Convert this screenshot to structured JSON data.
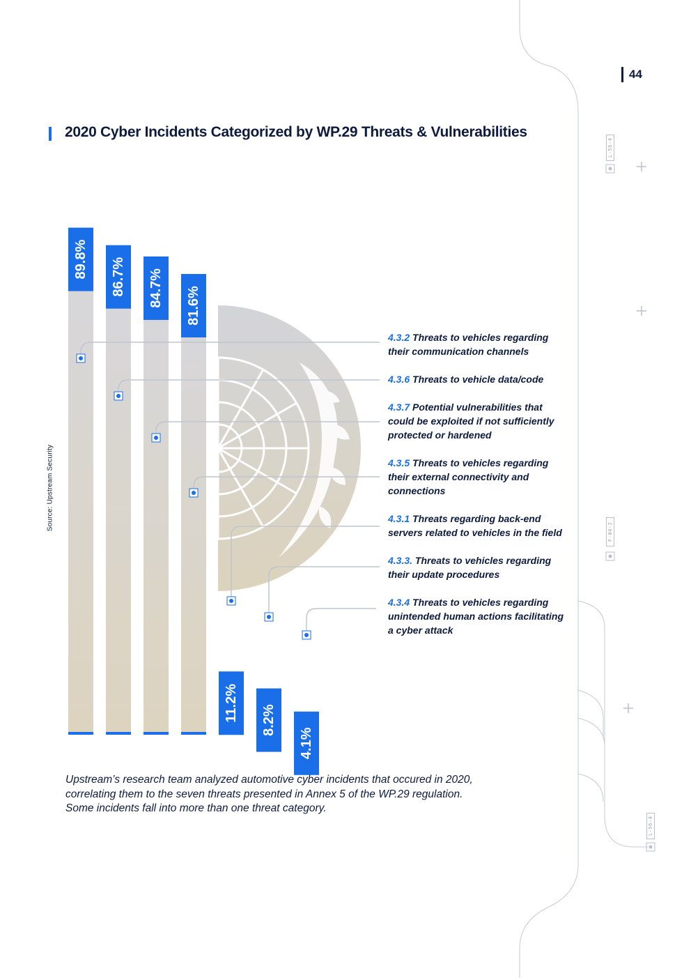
{
  "page_number": "44",
  "title": "2020 Cyber Incidents Categorized by WP.29 Threats & Vulnerabilities",
  "source_label": "Source: Upstream Security",
  "colors": {
    "accent": "#1a6ee8",
    "navy": "#0d1b3e",
    "bar_gray": "#d8d9de",
    "bar_beige": "#ddd4bf"
  },
  "chart_data": {
    "type": "bar",
    "title": "2020 Cyber Incidents Categorized by WP.29 Threats & Vulnerabilities",
    "unit": "%",
    "ylim": [
      0,
      100
    ],
    "categories": [
      "4.3.2",
      "4.3.6",
      "4.3.7",
      "4.3.5",
      "4.3.1",
      "4.3.3.",
      "4.3.4"
    ],
    "values": [
      89.8,
      86.7,
      84.7,
      81.6,
      11.2,
      8.2,
      4.1
    ],
    "value_labels": [
      "89.8%",
      "86.7%",
      "84.7%",
      "81.6%",
      "11.2%",
      "8.2%",
      "4.1%"
    ]
  },
  "threats": [
    {
      "code": "4.3.2",
      "line1": " Threats to vehicles regarding",
      "line2": "their communication channels",
      "line3": ""
    },
    {
      "code": "4.3.6",
      "line1": " Threats to vehicle data/code",
      "line2": "",
      "line3": ""
    },
    {
      "code": "4.3.7",
      "line1": " Potential vulnerabilities that",
      "line2": "could be exploited if not sufficiently",
      "line3": "protected or hardened"
    },
    {
      "code": "4.3.5",
      "line1": " Threats to vehicles regarding",
      "line2": "their external connectivity and",
      "line3": "connections"
    },
    {
      "code": "4.3.1",
      "line1": " Threats regarding back-end",
      "line2": "servers related to vehicles in the field",
      "line3": ""
    },
    {
      "code": "4.3.3.",
      "line1": " Threats to vehicles regarding",
      "line2": "their update procedures",
      "line3": ""
    },
    {
      "code": "4.3.4",
      "line1": " Threats to vehicles regarding",
      "line2": "unintended human actions facilitating",
      "line3": "a cyber attack"
    }
  ],
  "caption": {
    "line1": "Upstream’s research team analyzed automotive cyber incidents that occured in 2020,",
    "line2": "correlating them to the seven threats presented in Annex 5 of the WP.29 regulation.",
    "line3": "Some incidents fall into more than one threat category."
  },
  "side_tags": [
    "L-56-4",
    "F-04-2",
    "L-56-4"
  ]
}
